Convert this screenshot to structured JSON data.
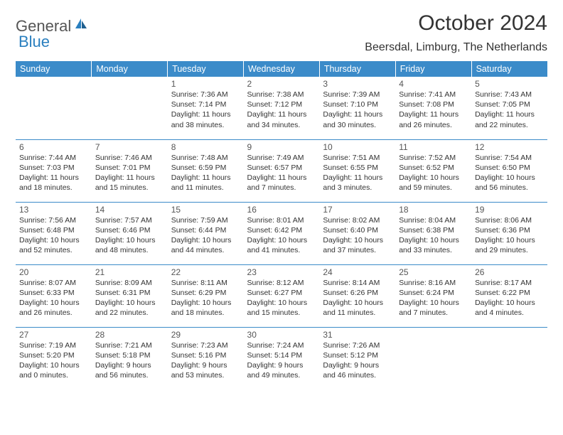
{
  "logo": {
    "text1": "General",
    "text2": "Blue",
    "icon_color": "#2a7fbf"
  },
  "title": "October 2024",
  "location": "Beersdal, Limburg, The Netherlands",
  "day_headers": [
    "Sunday",
    "Monday",
    "Tuesday",
    "Wednesday",
    "Thursday",
    "Friday",
    "Saturday"
  ],
  "colors": {
    "header_bg": "#3b8bc9",
    "header_text": "#ffffff",
    "row_border": "#3b8bc9",
    "text": "#333333",
    "logo_gray": "#555555",
    "logo_blue": "#2a7fbf",
    "background": "#ffffff"
  },
  "fonts": {
    "title_size": 30,
    "location_size": 16,
    "header_size": 12.5,
    "cell_size": 10.5,
    "daynum_size": 12
  },
  "weeks": [
    [
      null,
      null,
      {
        "n": "1",
        "sr": "Sunrise: 7:36 AM",
        "ss": "Sunset: 7:14 PM",
        "d1": "Daylight: 11 hours",
        "d2": "and 38 minutes."
      },
      {
        "n": "2",
        "sr": "Sunrise: 7:38 AM",
        "ss": "Sunset: 7:12 PM",
        "d1": "Daylight: 11 hours",
        "d2": "and 34 minutes."
      },
      {
        "n": "3",
        "sr": "Sunrise: 7:39 AM",
        "ss": "Sunset: 7:10 PM",
        "d1": "Daylight: 11 hours",
        "d2": "and 30 minutes."
      },
      {
        "n": "4",
        "sr": "Sunrise: 7:41 AM",
        "ss": "Sunset: 7:08 PM",
        "d1": "Daylight: 11 hours",
        "d2": "and 26 minutes."
      },
      {
        "n": "5",
        "sr": "Sunrise: 7:43 AM",
        "ss": "Sunset: 7:05 PM",
        "d1": "Daylight: 11 hours",
        "d2": "and 22 minutes."
      }
    ],
    [
      {
        "n": "6",
        "sr": "Sunrise: 7:44 AM",
        "ss": "Sunset: 7:03 PM",
        "d1": "Daylight: 11 hours",
        "d2": "and 18 minutes."
      },
      {
        "n": "7",
        "sr": "Sunrise: 7:46 AM",
        "ss": "Sunset: 7:01 PM",
        "d1": "Daylight: 11 hours",
        "d2": "and 15 minutes."
      },
      {
        "n": "8",
        "sr": "Sunrise: 7:48 AM",
        "ss": "Sunset: 6:59 PM",
        "d1": "Daylight: 11 hours",
        "d2": "and 11 minutes."
      },
      {
        "n": "9",
        "sr": "Sunrise: 7:49 AM",
        "ss": "Sunset: 6:57 PM",
        "d1": "Daylight: 11 hours",
        "d2": "and 7 minutes."
      },
      {
        "n": "10",
        "sr": "Sunrise: 7:51 AM",
        "ss": "Sunset: 6:55 PM",
        "d1": "Daylight: 11 hours",
        "d2": "and 3 minutes."
      },
      {
        "n": "11",
        "sr": "Sunrise: 7:52 AM",
        "ss": "Sunset: 6:52 PM",
        "d1": "Daylight: 10 hours",
        "d2": "and 59 minutes."
      },
      {
        "n": "12",
        "sr": "Sunrise: 7:54 AM",
        "ss": "Sunset: 6:50 PM",
        "d1": "Daylight: 10 hours",
        "d2": "and 56 minutes."
      }
    ],
    [
      {
        "n": "13",
        "sr": "Sunrise: 7:56 AM",
        "ss": "Sunset: 6:48 PM",
        "d1": "Daylight: 10 hours",
        "d2": "and 52 minutes."
      },
      {
        "n": "14",
        "sr": "Sunrise: 7:57 AM",
        "ss": "Sunset: 6:46 PM",
        "d1": "Daylight: 10 hours",
        "d2": "and 48 minutes."
      },
      {
        "n": "15",
        "sr": "Sunrise: 7:59 AM",
        "ss": "Sunset: 6:44 PM",
        "d1": "Daylight: 10 hours",
        "d2": "and 44 minutes."
      },
      {
        "n": "16",
        "sr": "Sunrise: 8:01 AM",
        "ss": "Sunset: 6:42 PM",
        "d1": "Daylight: 10 hours",
        "d2": "and 41 minutes."
      },
      {
        "n": "17",
        "sr": "Sunrise: 8:02 AM",
        "ss": "Sunset: 6:40 PM",
        "d1": "Daylight: 10 hours",
        "d2": "and 37 minutes."
      },
      {
        "n": "18",
        "sr": "Sunrise: 8:04 AM",
        "ss": "Sunset: 6:38 PM",
        "d1": "Daylight: 10 hours",
        "d2": "and 33 minutes."
      },
      {
        "n": "19",
        "sr": "Sunrise: 8:06 AM",
        "ss": "Sunset: 6:36 PM",
        "d1": "Daylight: 10 hours",
        "d2": "and 29 minutes."
      }
    ],
    [
      {
        "n": "20",
        "sr": "Sunrise: 8:07 AM",
        "ss": "Sunset: 6:33 PM",
        "d1": "Daylight: 10 hours",
        "d2": "and 26 minutes."
      },
      {
        "n": "21",
        "sr": "Sunrise: 8:09 AM",
        "ss": "Sunset: 6:31 PM",
        "d1": "Daylight: 10 hours",
        "d2": "and 22 minutes."
      },
      {
        "n": "22",
        "sr": "Sunrise: 8:11 AM",
        "ss": "Sunset: 6:29 PM",
        "d1": "Daylight: 10 hours",
        "d2": "and 18 minutes."
      },
      {
        "n": "23",
        "sr": "Sunrise: 8:12 AM",
        "ss": "Sunset: 6:27 PM",
        "d1": "Daylight: 10 hours",
        "d2": "and 15 minutes."
      },
      {
        "n": "24",
        "sr": "Sunrise: 8:14 AM",
        "ss": "Sunset: 6:26 PM",
        "d1": "Daylight: 10 hours",
        "d2": "and 11 minutes."
      },
      {
        "n": "25",
        "sr": "Sunrise: 8:16 AM",
        "ss": "Sunset: 6:24 PM",
        "d1": "Daylight: 10 hours",
        "d2": "and 7 minutes."
      },
      {
        "n": "26",
        "sr": "Sunrise: 8:17 AM",
        "ss": "Sunset: 6:22 PM",
        "d1": "Daylight: 10 hours",
        "d2": "and 4 minutes."
      }
    ],
    [
      {
        "n": "27",
        "sr": "Sunrise: 7:19 AM",
        "ss": "Sunset: 5:20 PM",
        "d1": "Daylight: 10 hours",
        "d2": "and 0 minutes."
      },
      {
        "n": "28",
        "sr": "Sunrise: 7:21 AM",
        "ss": "Sunset: 5:18 PM",
        "d1": "Daylight: 9 hours",
        "d2": "and 56 minutes."
      },
      {
        "n": "29",
        "sr": "Sunrise: 7:23 AM",
        "ss": "Sunset: 5:16 PM",
        "d1": "Daylight: 9 hours",
        "d2": "and 53 minutes."
      },
      {
        "n": "30",
        "sr": "Sunrise: 7:24 AM",
        "ss": "Sunset: 5:14 PM",
        "d1": "Daylight: 9 hours",
        "d2": "and 49 minutes."
      },
      {
        "n": "31",
        "sr": "Sunrise: 7:26 AM",
        "ss": "Sunset: 5:12 PM",
        "d1": "Daylight: 9 hours",
        "d2": "and 46 minutes."
      },
      null,
      null
    ]
  ]
}
